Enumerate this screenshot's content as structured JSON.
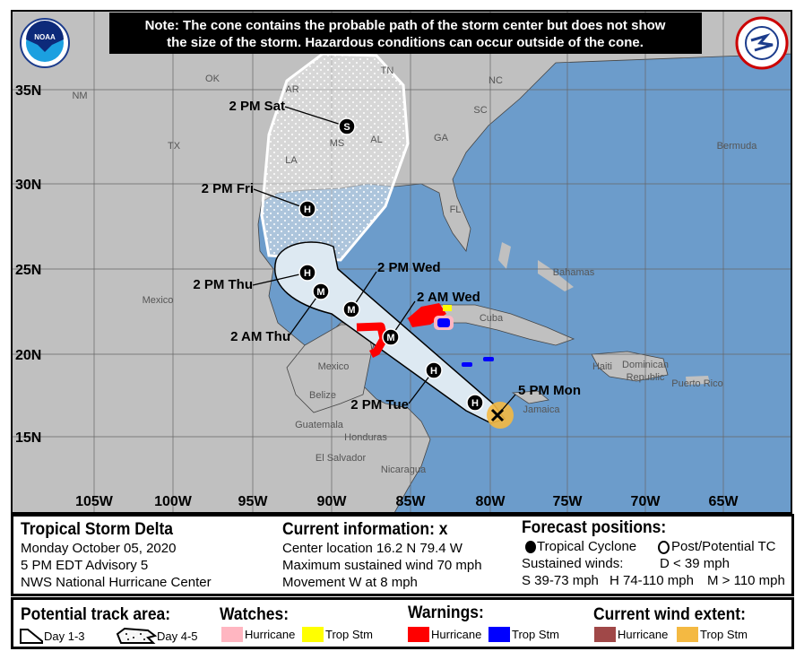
{
  "note": [
    "Note: The cone contains the probable path of the storm center but does not show",
    "the size of the storm. Hazardous conditions can occur outside of the cone."
  ],
  "logos": {
    "left": "NOAA",
    "right": "NATIONAL WEATHER SERVICE"
  },
  "map": {
    "colors": {
      "ocean": "#6c9ccb",
      "land": "#c0c0c0",
      "cone_day13": "#dde9f2",
      "hurricane_warning": "#ff0000",
      "trop_storm_warning": "#0000ff",
      "hurricane_watch": "#ffb6c1",
      "trop_storm_watch": "#ffff00",
      "trop_storm_wind": "#f4b942"
    },
    "lon_labels": [
      "105W",
      "100W",
      "95W",
      "90W",
      "85W",
      "80W",
      "75W",
      "70W",
      "65W"
    ],
    "lat_labels": [
      "35N",
      "30N",
      "25N",
      "20N",
      "15N"
    ],
    "places": [
      "OK",
      "AR",
      "TN",
      "NC",
      "SC",
      "GA",
      "AL",
      "MS",
      "LA",
      "TX",
      "NM",
      "FL",
      "Bermuda",
      "Bahamas",
      "Cuba",
      "Mexico",
      "Mexico",
      "Jamaica",
      "Haiti",
      "Dominican",
      "Republic",
      "Puerto Rico",
      "Guatemala",
      "Honduras",
      "El Salvador",
      "Nicaragua",
      "Belize"
    ],
    "track": [
      {
        "label": "5 PM Mon",
        "marker": "x"
      },
      {
        "label": "",
        "marker": "H"
      },
      {
        "label": "2 PM Tue",
        "marker": "H"
      },
      {
        "label": "2 AM Wed",
        "marker": "M"
      },
      {
        "label": "2 PM Wed",
        "marker": "M"
      },
      {
        "label": "2 AM Thu",
        "marker": "M"
      },
      {
        "label": "2 PM Thu",
        "marker": "H"
      },
      {
        "label": "2 PM Fri",
        "marker": "H"
      },
      {
        "label": "2 PM Sat",
        "marker": "S"
      }
    ]
  },
  "info": {
    "storm_name": "Tropical Storm Delta",
    "date": "Monday October 05, 2020",
    "advisory": "5 PM EDT Advisory 5",
    "center": "NWS National Hurricane Center",
    "current_title": "Current information: ",
    "current_icon": "x",
    "location": "Center location 16.2 N 79.4 W",
    "max_wind": "Maximum sustained wind 70 mph",
    "movement": "Movement W at 8 mph",
    "forecast_title": "Forecast positions:",
    "tropical_cyclone": "Tropical Cyclone",
    "post_potential": "Post/Potential TC",
    "sustained": "Sustained winds:",
    "d": "D < 39 mph",
    "s": "S 39-73 mph",
    "hh": "H 74-110 mph",
    "m": "M > 110 mph"
  },
  "legend": {
    "track_title": "Potential track area:",
    "day13": "Day 1-3",
    "day45": "Day 4-5",
    "watches_title": "Watches:",
    "watch_hurricane": "Hurricane",
    "watch_ts": "Trop Stm",
    "warnings_title": "Warnings:",
    "warn_hurricane": "Hurricane",
    "warn_ts": "Trop Stm",
    "wind_title": "Current wind extent:",
    "wind_hurricane": "Hurricane",
    "wind_ts": "Trop Stm",
    "colors": {
      "watch_hurricane": "#ffb6c1",
      "watch_ts": "#ffff00",
      "warn_hurricane": "#ff0000",
      "warn_ts": "#0000ff",
      "wind_hurricane": "#a04848",
      "wind_ts": "#f4b942"
    }
  }
}
